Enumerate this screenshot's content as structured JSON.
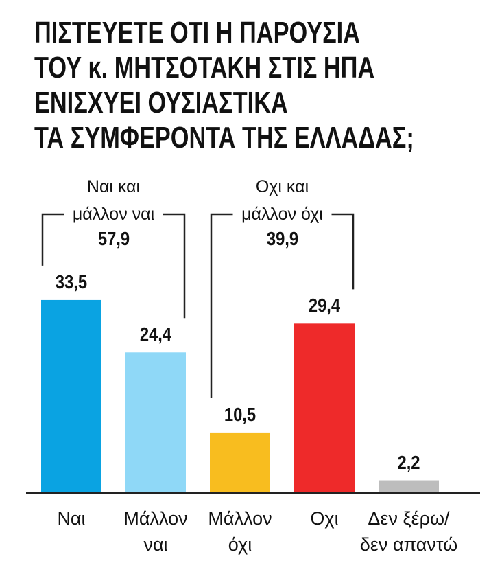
{
  "chart_data": {
    "type": "bar",
    "title": "ΠΙΣΤΕΥΕΤΕ ΟΤΙ Η ΠΑΡΟΥΣΙΑ\nΤΟΥ κ. ΜΗΤΣΟΤΑΚΗ ΣΤΙΣ ΗΠΑ\nΕΝΙΣΧΥΕΙ ΟΥΣΙΑΣΤΙΚΑ\nΤΑ ΣΥΜΦΕΡΟΝΤΑ ΤΗΣ ΕΛΛΑΔΑΣ;",
    "categories": [
      "Ναι",
      "Μάλλον\nναι",
      "Μάλλον\nόχι",
      "Οχι",
      "Δεν ξέρω/\nδεν απαντώ"
    ],
    "values": [
      33.5,
      24.4,
      10.5,
      29.4,
      2.2
    ],
    "value_labels": [
      "33,5",
      "24,4",
      "10,5",
      "29,4",
      "2,2"
    ],
    "colors": [
      "#0aa3e2",
      "#8fd8f7",
      "#f8bd1f",
      "#ee2a2a",
      "#bdbdbd"
    ],
    "groups": [
      {
        "label": "Ναι και\nμάλλον ναι",
        "value": 57.9,
        "value_label": "57,9"
      },
      {
        "label": "Οχι και\nμάλλον όχι",
        "value": 39.9,
        "value_label": "39,9"
      }
    ]
  }
}
